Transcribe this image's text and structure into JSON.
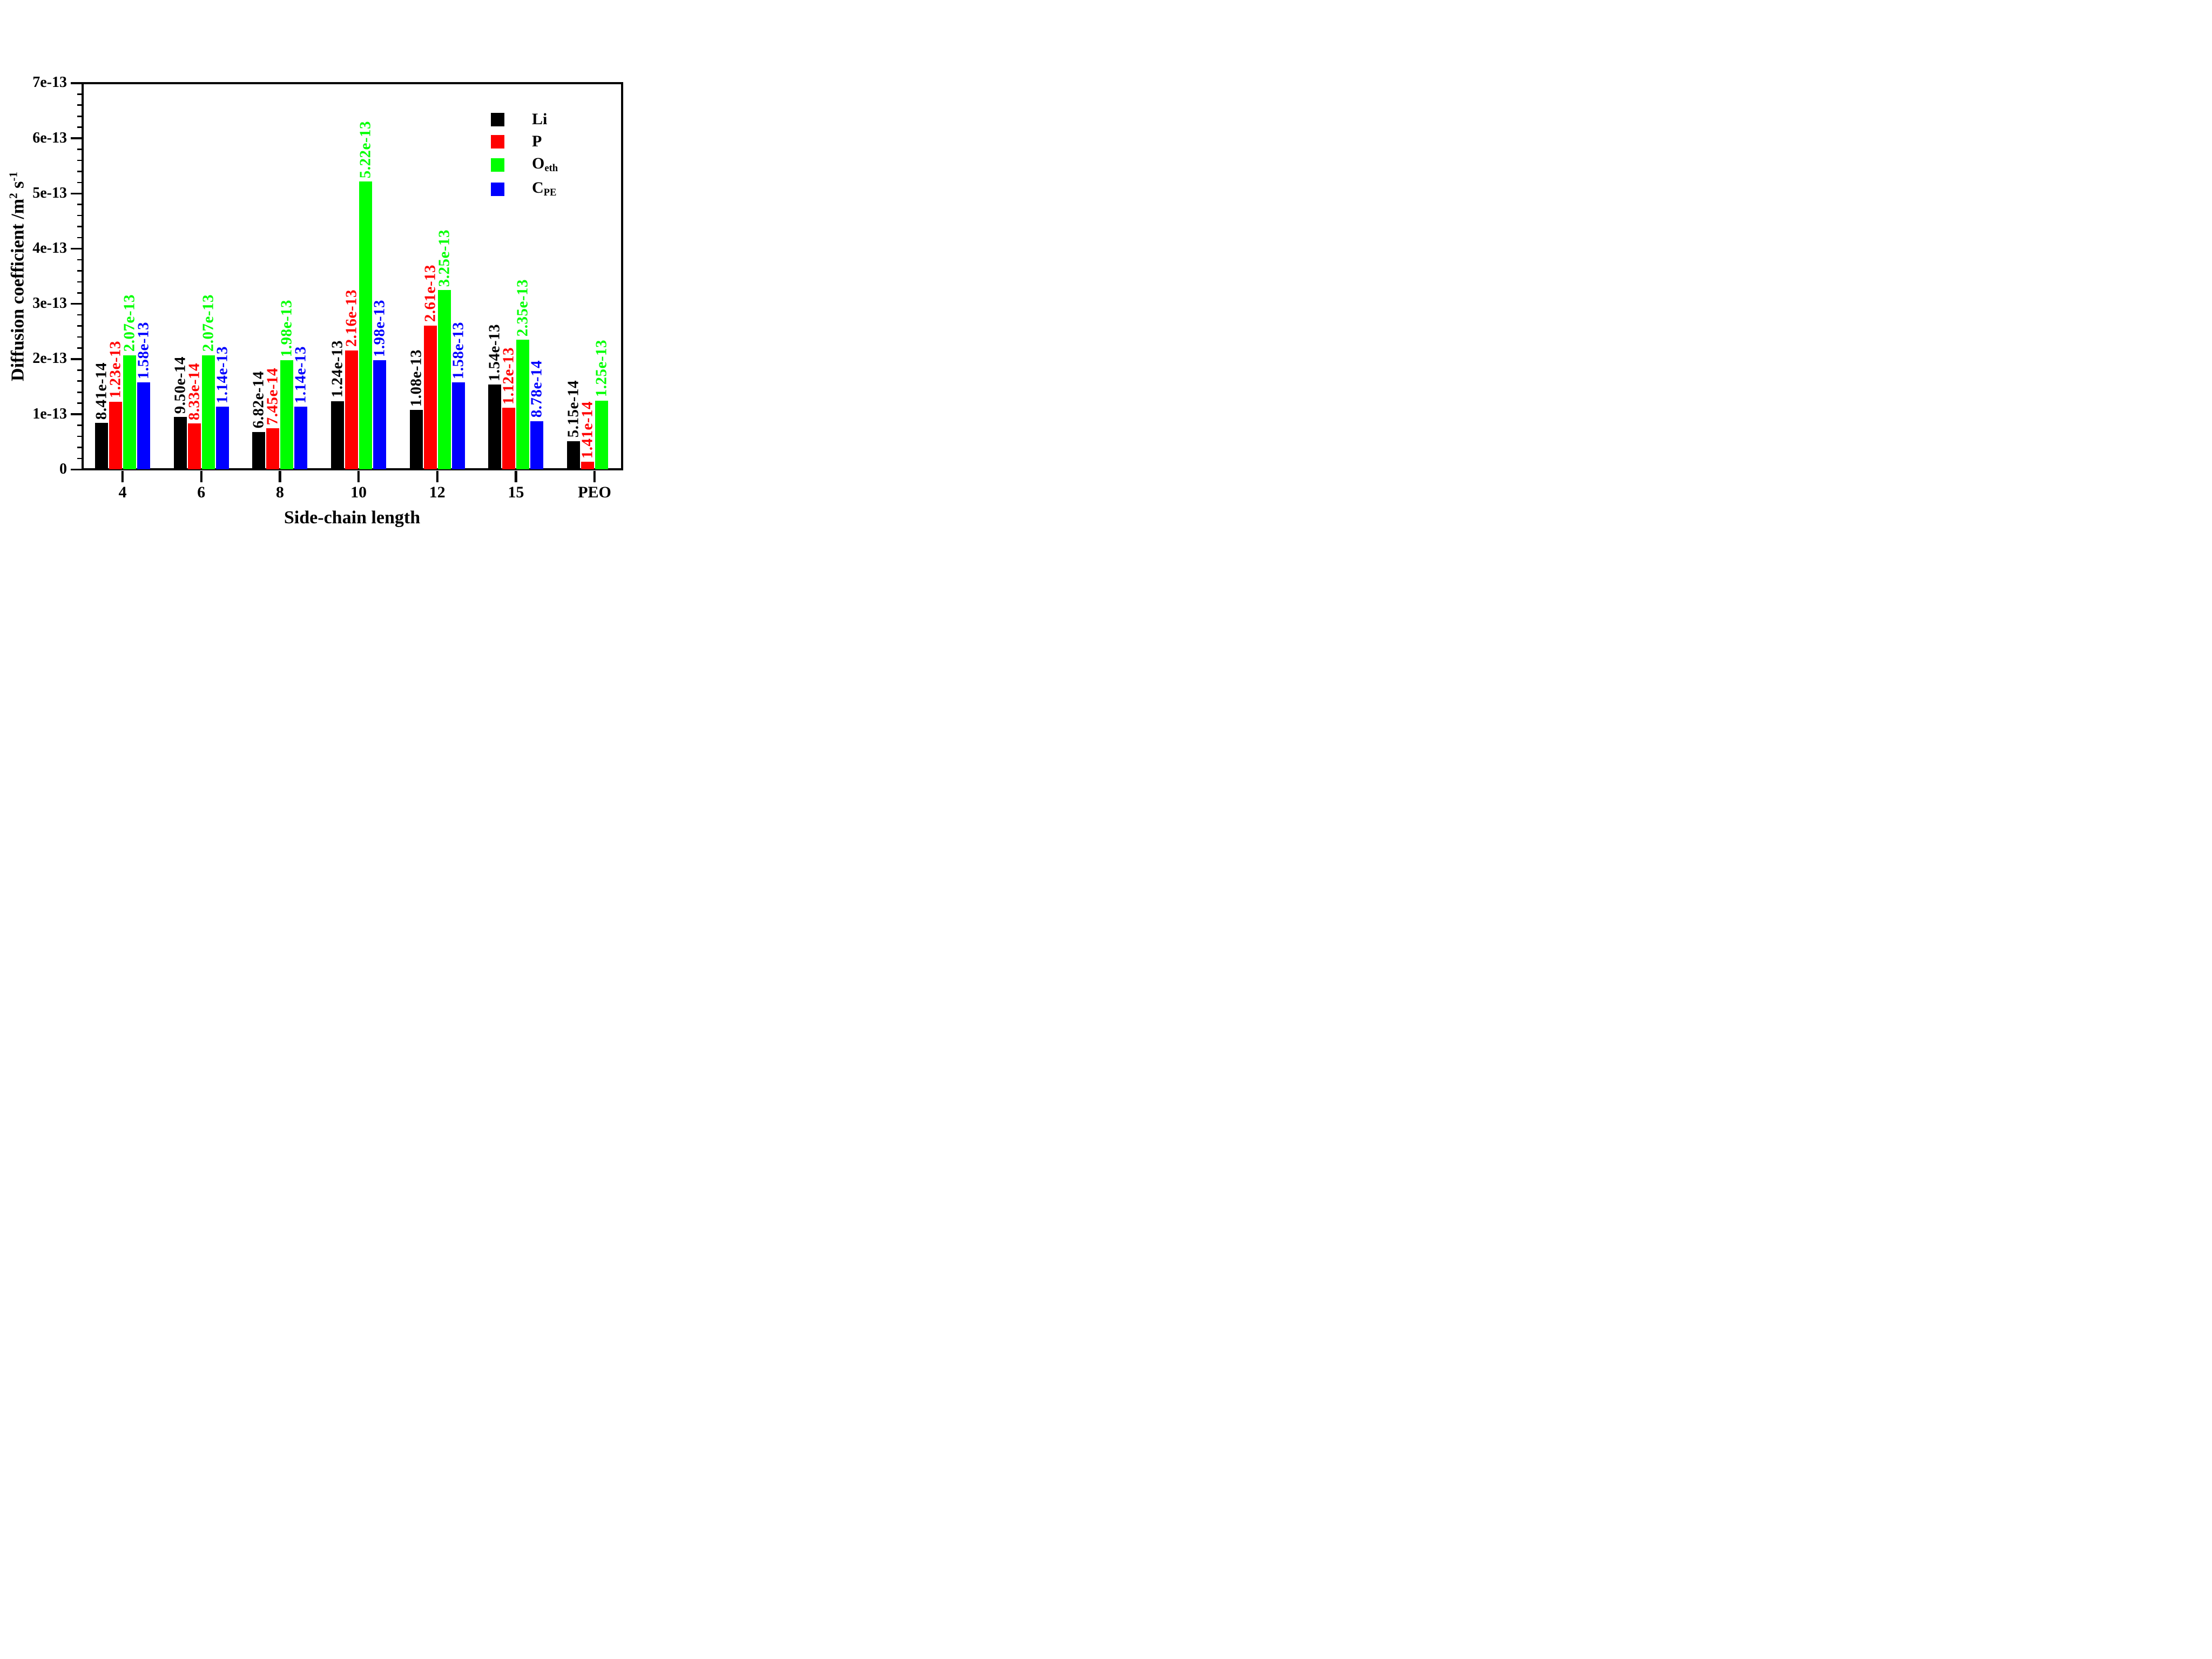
{
  "chart_data": {
    "type": "bar",
    "title": "",
    "xlabel": "Side-chain length",
    "ylabel": {
      "main1": "Diffusion coefficient /m",
      "sup1": "2",
      "main2": " s",
      "sup2": "-1"
    },
    "categories": [
      "4",
      "6",
      "8",
      "10",
      "12",
      "15",
      "PEO"
    ],
    "series": [
      {
        "name": "Li",
        "name_sub": "",
        "color": "#000000",
        "values": [
          8.41e-14,
          9.5e-14,
          6.82e-14,
          1.24e-13,
          1.08e-13,
          1.54e-13,
          5.15e-14
        ],
        "labels": [
          "8.41e-14",
          "9.50e-14",
          "6.82e-14",
          "1.24e-13",
          "1.08e-13",
          "1.54e-13",
          "5.15e-14"
        ]
      },
      {
        "name": "P",
        "name_sub": "",
        "color": "#ff0000",
        "values": [
          1.23e-13,
          8.33e-14,
          7.45e-14,
          2.16e-13,
          2.61e-13,
          1.12e-13,
          1.41e-14
        ],
        "labels": [
          "1.23e-13",
          "8.33e-14",
          "7.45e-14",
          "2.16e-13",
          "2.61e-13",
          "1.12e-13",
          "1.41e-14"
        ]
      },
      {
        "name": "O",
        "name_sub": "eth",
        "color": "#00ff00",
        "values": [
          2.07e-13,
          2.07e-13,
          1.98e-13,
          5.22e-13,
          3.25e-13,
          2.35e-13,
          1.25e-13
        ],
        "labels": [
          "2.07e-13",
          "2.07e-13",
          "1.98e-13",
          "5.22e-13",
          "3.25e-13",
          "2.35e-13",
          "1.25e-13"
        ]
      },
      {
        "name": "C",
        "name_sub": "PE",
        "color": "#0000ff",
        "values": [
          1.58e-13,
          1.14e-13,
          1.14e-13,
          1.98e-13,
          1.58e-13,
          8.78e-14,
          null
        ],
        "labels": [
          "1.58e-13",
          "1.14e-13",
          "1.14e-13",
          "1.98e-13",
          "1.58e-13",
          "8.78e-14",
          null
        ]
      }
    ],
    "y_ticks": [
      "0",
      "1e-13",
      "2e-13",
      "3e-13",
      "4e-13",
      "5e-13",
      "6e-13",
      "7e-13"
    ],
    "ylim": [
      0,
      7e-13
    ],
    "y_minor_step": 2e-14,
    "legend_position": "upper-right",
    "grid": false
  }
}
